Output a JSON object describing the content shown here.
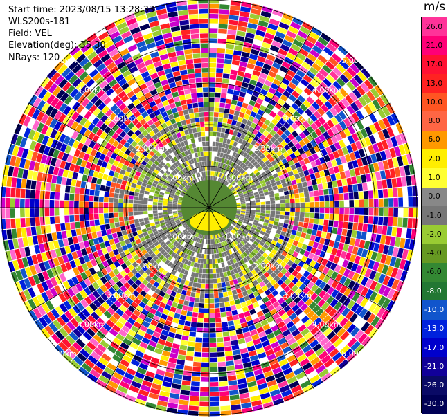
{
  "info": {
    "start_time": "Start time: 2023/08/15 13:28:33",
    "instrument": "WLS200s-181",
    "field": "Field: VEL",
    "elevation": "Elevation(deg): 35.30",
    "nrays": "NRays: 120"
  },
  "colorbar": {
    "unit": "m/s",
    "ticks": [
      "26.0",
      "21.0",
      "17.0",
      "13.0",
      "10.0",
      "8.0",
      "6.0",
      "2.0",
      "1.0",
      "0.0",
      "-1.0",
      "-2.0",
      "-4.0",
      "-6.0",
      "-8.0",
      "-10.0",
      "-13.0",
      "-17.0",
      "-21.0",
      "-26.0",
      "-30.0"
    ],
    "colors": [
      "#ff3399",
      "#ff0077",
      "#ff1133",
      "#ff2222",
      "#ff5522",
      "#ff6644",
      "#ff9900",
      "#ffee00",
      "#ffff33",
      "#888888",
      "#777777",
      "#99cc33",
      "#669922",
      "#338833",
      "#227733",
      "#1155cc",
      "#0022dd",
      "#0000cc",
      "#110099",
      "#0a0a66",
      "#000055"
    ]
  },
  "rings": {
    "labels": [
      "1.00km",
      "2.00km",
      "3.00km",
      "4.00km",
      "5.00km"
    ]
  },
  "map": {
    "range_rings_km": [
      1,
      2,
      3,
      4,
      5
    ],
    "spoke_count": 12,
    "near_field_color": "#777777",
    "ring_color": "#000000"
  }
}
